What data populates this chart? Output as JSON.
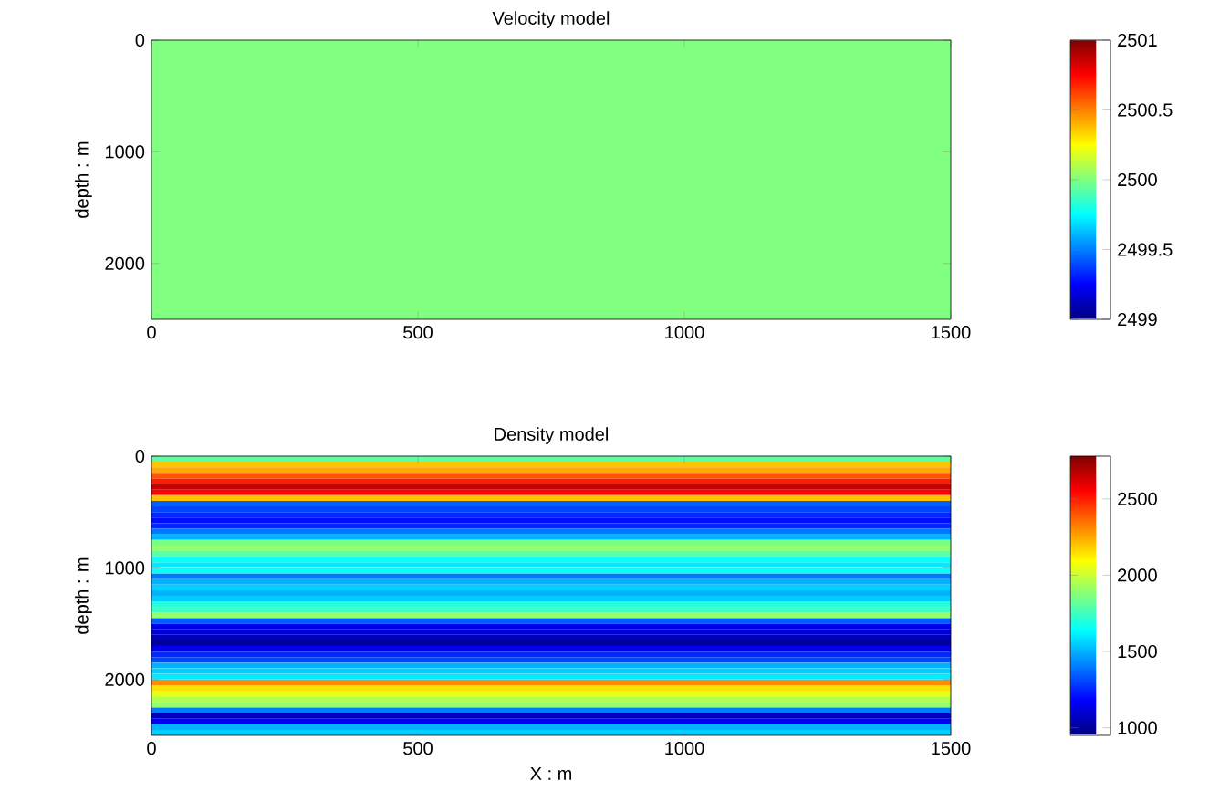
{
  "chart_data": [
    {
      "type": "heatmap",
      "title": "Velocity model",
      "ylabel": "depth : m",
      "cells": [
        [
          2500
        ]
      ],
      "xlim": [
        0,
        1500
      ],
      "xticks": [
        0,
        500,
        1000,
        1500
      ],
      "ylim": [
        2500,
        0
      ],
      "yticks": [
        0,
        1000,
        2000
      ],
      "clim": [
        2499,
        2501
      ],
      "cticks": [
        2499,
        2499.5,
        2500,
        2500.5,
        2501
      ]
    },
    {
      "type": "heatmap",
      "title": "Density model",
      "xlabel": "X : m",
      "ylabel": "depth : m",
      "cells": [
        [
          1800
        ],
        [
          2200
        ],
        [
          2250
        ],
        [
          2400
        ],
        [
          2500
        ],
        [
          2650
        ],
        [
          2550
        ],
        [
          2200
        ],
        [
          1350
        ],
        [
          1300
        ],
        [
          1250
        ],
        [
          1200
        ],
        [
          1250
        ],
        [
          1400
        ],
        [
          1500
        ],
        [
          1850
        ],
        [
          1900
        ],
        [
          1800
        ],
        [
          1650
        ],
        [
          1600
        ],
        [
          1650
        ],
        [
          1400
        ],
        [
          1500
        ],
        [
          1550
        ],
        [
          1500
        ],
        [
          1550
        ],
        [
          1700
        ],
        [
          1750
        ],
        [
          1900
        ],
        [
          1350
        ],
        [
          1150
        ],
        [
          1100
        ],
        [
          1050
        ],
        [
          1000
        ],
        [
          1150
        ],
        [
          1250
        ],
        [
          1300
        ],
        [
          1500
        ],
        [
          1550
        ],
        [
          1600
        ],
        [
          2300
        ],
        [
          2150
        ],
        [
          2050
        ],
        [
          1950
        ],
        [
          1900
        ],
        [
          1400
        ],
        [
          1050
        ],
        [
          1150
        ],
        [
          1500
        ],
        [
          1550
        ]
      ],
      "xlim": [
        0,
        1500
      ],
      "xticks": [
        0,
        500,
        1000,
        1500
      ],
      "ylim": [
        2500,
        0
      ],
      "yticks": [
        0,
        1000,
        2000
      ],
      "clim": [
        950,
        2780
      ],
      "cticks": [
        1000,
        1500,
        2000,
        2500
      ]
    }
  ]
}
